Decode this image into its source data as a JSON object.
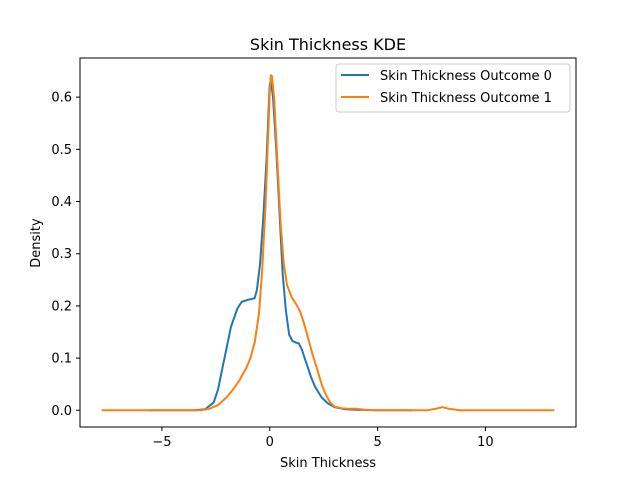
{
  "chart_data": {
    "type": "line",
    "title": "Skin Thickness KDE",
    "xlabel": "Skin Thickness",
    "ylabel": "Density",
    "xlim": [
      -8.8,
      14.2
    ],
    "ylim": [
      -0.032,
      0.675
    ],
    "xticks": [
      -5,
      0,
      5,
      10
    ],
    "xtick_labels": [
      "−5",
      "0",
      "5",
      "10"
    ],
    "yticks": [
      0.0,
      0.1,
      0.2,
      0.3,
      0.4,
      0.5,
      0.6
    ],
    "ytick_labels": [
      "0.0",
      "0.1",
      "0.2",
      "0.3",
      "0.4",
      "0.5",
      "0.6"
    ],
    "legend_position": "top-right",
    "grid": false,
    "series": [
      {
        "name": "Skin Thickness Outcome 0",
        "color": "#1f77b4",
        "points": [
          [
            -5.6,
            0.0
          ],
          [
            -3.5,
            0.0
          ],
          [
            -3.0,
            0.002
          ],
          [
            -2.6,
            0.015
          ],
          [
            -2.4,
            0.04
          ],
          [
            -2.2,
            0.08
          ],
          [
            -2.0,
            0.12
          ],
          [
            -1.8,
            0.16
          ],
          [
            -1.5,
            0.195
          ],
          [
            -1.3,
            0.208
          ],
          [
            -1.0,
            0.212
          ],
          [
            -0.85,
            0.213
          ],
          [
            -0.7,
            0.215
          ],
          [
            -0.6,
            0.23
          ],
          [
            -0.45,
            0.28
          ],
          [
            -0.3,
            0.37
          ],
          [
            -0.15,
            0.48
          ],
          [
            -0.05,
            0.58
          ],
          [
            0.0,
            0.625
          ],
          [
            0.05,
            0.632
          ],
          [
            0.15,
            0.6
          ],
          [
            0.3,
            0.5
          ],
          [
            0.45,
            0.38
          ],
          [
            0.6,
            0.26
          ],
          [
            0.75,
            0.19
          ],
          [
            0.9,
            0.145
          ],
          [
            1.05,
            0.133
          ],
          [
            1.2,
            0.13
          ],
          [
            1.35,
            0.128
          ],
          [
            1.5,
            0.115
          ],
          [
            1.7,
            0.09
          ],
          [
            1.9,
            0.065
          ],
          [
            2.1,
            0.045
          ],
          [
            2.4,
            0.025
          ],
          [
            2.7,
            0.013
          ],
          [
            3.0,
            0.006
          ],
          [
            3.5,
            0.002
          ],
          [
            4.0,
            0.001
          ],
          [
            5.0,
            0.0
          ],
          [
            6.6,
            0.0
          ]
        ]
      },
      {
        "name": "Skin Thickness Outcome 1",
        "color": "#ff7f0e",
        "points": [
          [
            -7.8,
            0.0
          ],
          [
            -4.0,
            0.0
          ],
          [
            -3.2,
            0.0
          ],
          [
            -2.8,
            0.003
          ],
          [
            -2.4,
            0.01
          ],
          [
            -2.0,
            0.025
          ],
          [
            -1.7,
            0.04
          ],
          [
            -1.4,
            0.058
          ],
          [
            -1.1,
            0.08
          ],
          [
            -0.9,
            0.1
          ],
          [
            -0.7,
            0.13
          ],
          [
            -0.5,
            0.185
          ],
          [
            -0.35,
            0.27
          ],
          [
            -0.2,
            0.39
          ],
          [
            -0.1,
            0.5
          ],
          [
            0.0,
            0.61
          ],
          [
            0.05,
            0.642
          ],
          [
            0.1,
            0.64
          ],
          [
            0.2,
            0.6
          ],
          [
            0.35,
            0.48
          ],
          [
            0.5,
            0.36
          ],
          [
            0.65,
            0.28
          ],
          [
            0.8,
            0.24
          ],
          [
            1.0,
            0.218
          ],
          [
            1.2,
            0.205
          ],
          [
            1.4,
            0.19
          ],
          [
            1.6,
            0.165
          ],
          [
            1.8,
            0.135
          ],
          [
            2.0,
            0.105
          ],
          [
            2.2,
            0.078
          ],
          [
            2.4,
            0.05
          ],
          [
            2.6,
            0.03
          ],
          [
            2.8,
            0.015
          ],
          [
            3.0,
            0.007
          ],
          [
            3.3,
            0.004
          ],
          [
            3.6,
            0.003
          ],
          [
            4.0,
            0.003
          ],
          [
            4.4,
            0.001
          ],
          [
            5.0,
            0.0
          ],
          [
            6.5,
            0.0
          ],
          [
            7.3,
            0.0
          ],
          [
            7.7,
            0.003
          ],
          [
            8.0,
            0.006
          ],
          [
            8.3,
            0.003
          ],
          [
            8.8,
            0.0
          ],
          [
            10.0,
            0.0
          ],
          [
            13.2,
            0.0
          ]
        ]
      }
    ]
  }
}
